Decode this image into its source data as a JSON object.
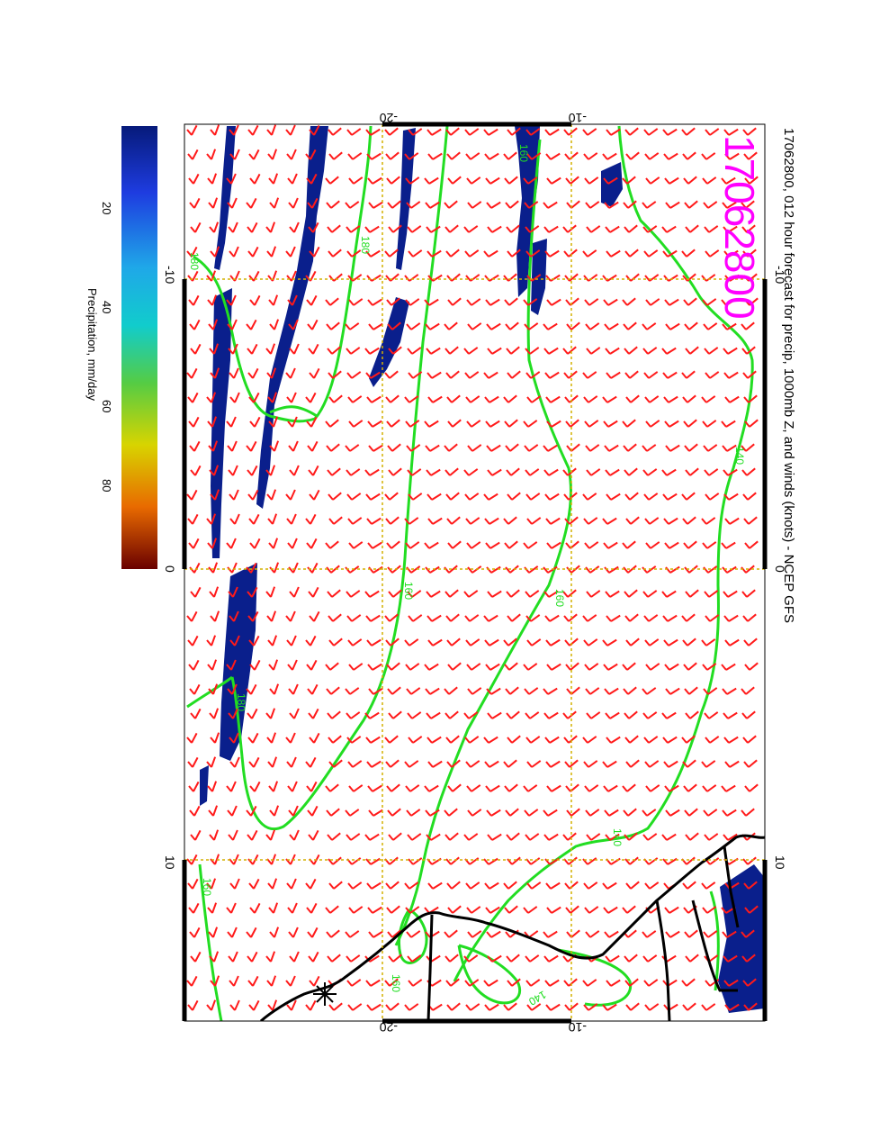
{
  "title": "17062800, 012 hour forecast for precip, 1000mb Z, and winds (knots) - NCEP GFS",
  "stamp": "17062800",
  "axes": {
    "lon_ticks_top": [
      "-10",
      "0",
      "10"
    ],
    "lon_ticks_bottom": [
      "-10",
      "0",
      "10"
    ],
    "lat_ticks_left": [
      "-20",
      "-10"
    ],
    "lat_ticks_right": [
      "-20",
      "-10"
    ]
  },
  "contours": {
    "labels": [
      "140",
      "160",
      "180"
    ]
  },
  "colorbar": {
    "label": "Precipitation, mm/day",
    "ticks": [
      "20",
      "40",
      "60",
      "80"
    ]
  },
  "colors": {
    "precip": "#0a1f8c",
    "contour": "#22dd22",
    "barb": "#ff1a1a",
    "grid": "#d4b000",
    "coast": "#000000",
    "stamp": "#ff00ff"
  }
}
